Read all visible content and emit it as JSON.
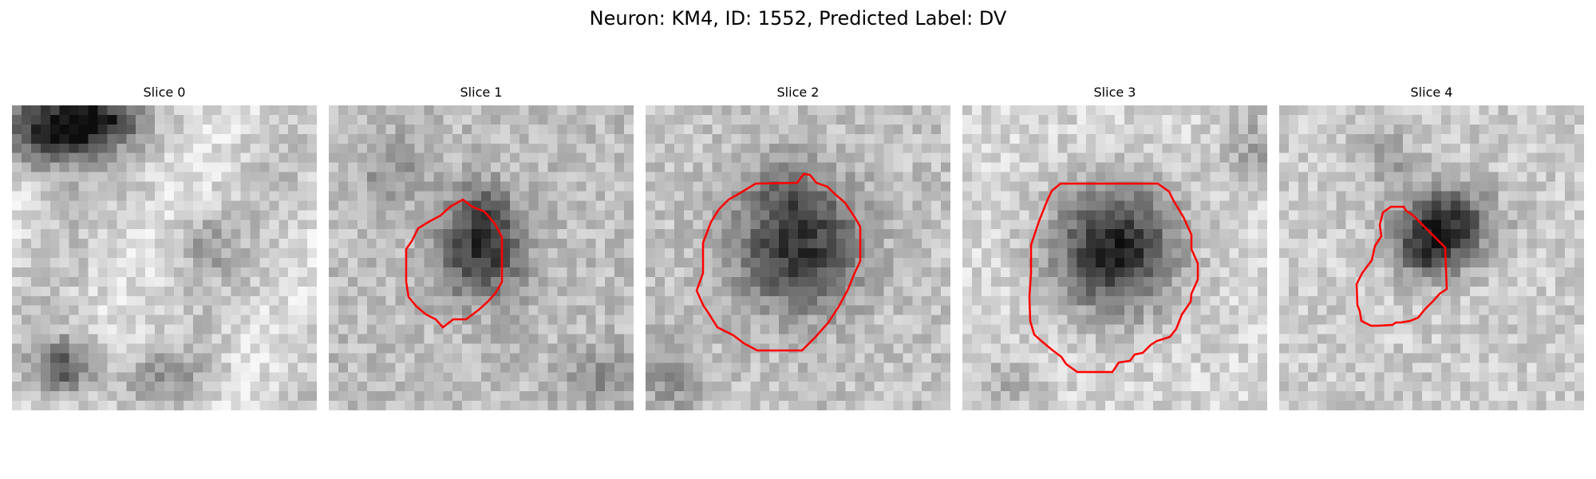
{
  "figure": {
    "title": "Neuron: KM4, ID: 1552, Predicted Label: DV"
  },
  "panels": [
    {
      "title": "Slice 0",
      "has_contour": false
    },
    {
      "title": "Slice 1",
      "has_contour": true
    },
    {
      "title": "Slice 2",
      "has_contour": true
    },
    {
      "title": "Slice 3",
      "has_contour": true
    },
    {
      "title": "Slice 4",
      "has_contour": true
    }
  ],
  "colors": {
    "contour": "#ff0000",
    "background": "#ffffff"
  }
}
